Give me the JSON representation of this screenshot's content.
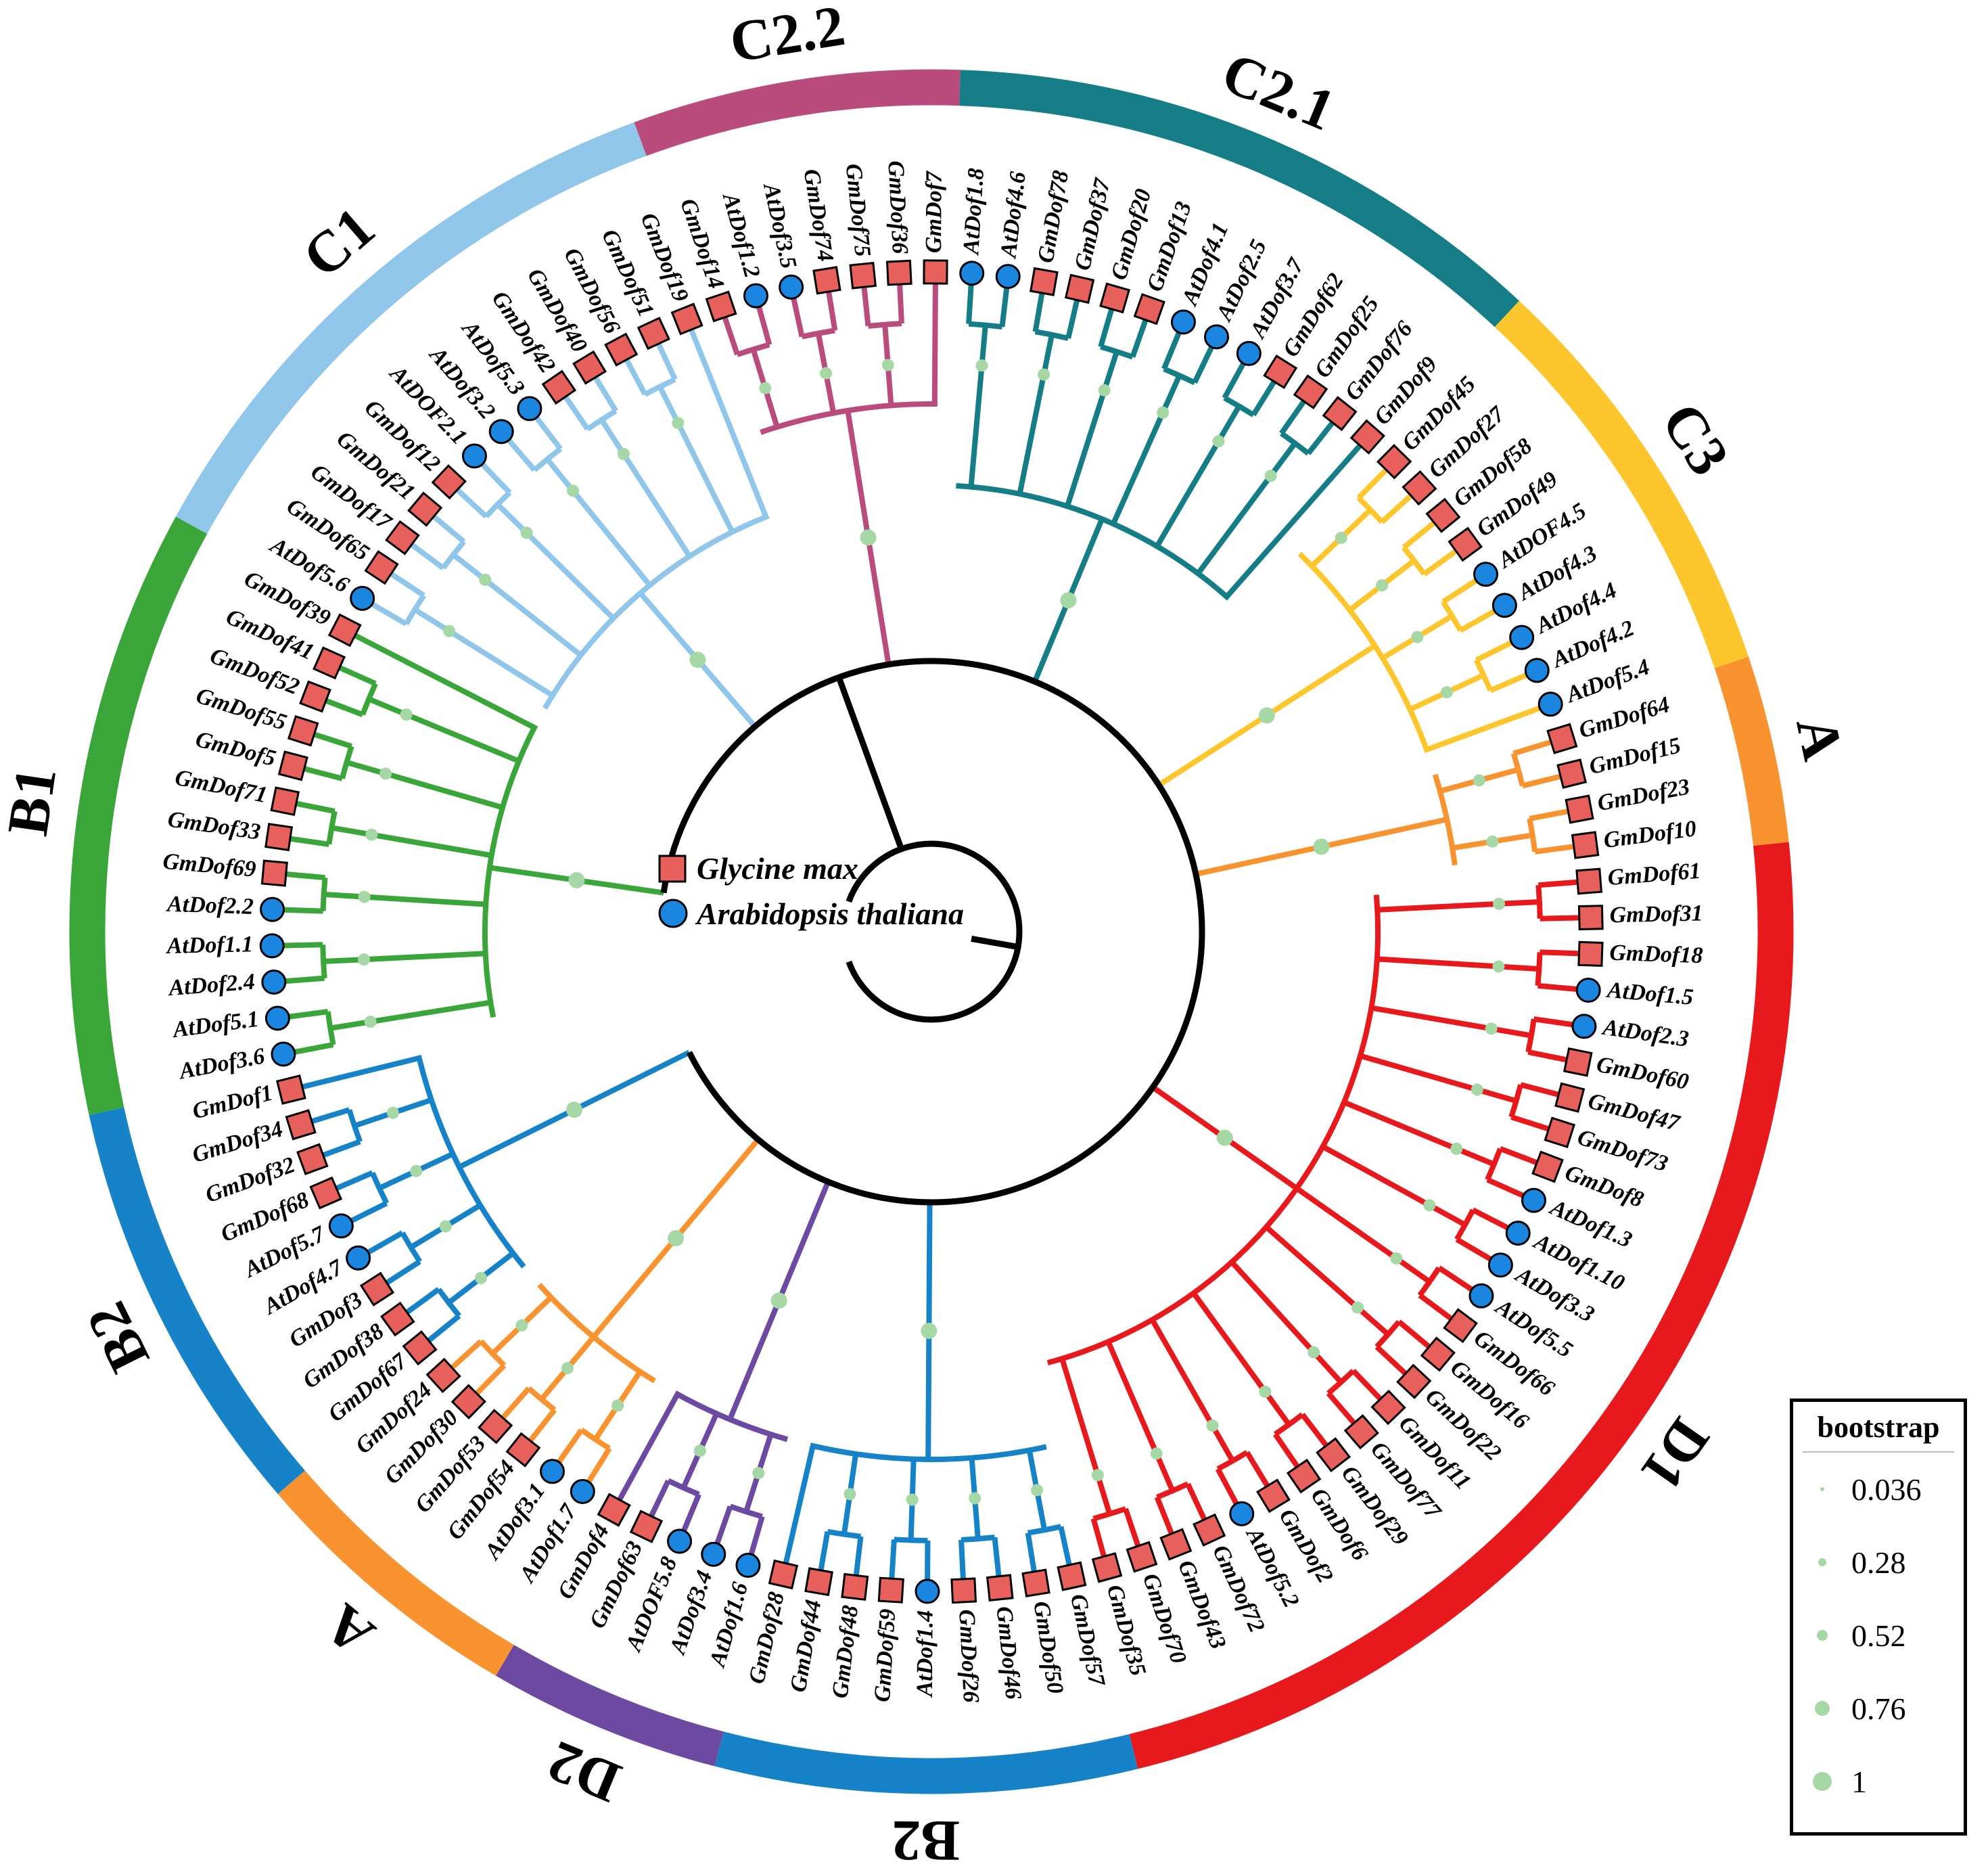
{
  "species_legend": [
    {
      "label": "Glycine max",
      "marker": "square",
      "color": "#e8605c"
    },
    {
      "label": "Arabidopsis thaliana",
      "marker": "circle",
      "color": "#1a86e0"
    }
  ],
  "bootstrap_legend": {
    "title": "bootstrap",
    "values": [
      "0.036",
      "0.28",
      "0.52",
      "0.76",
      "1"
    ],
    "dot_color": "#a5d8a5"
  },
  "clades": [
    {
      "name": "B1",
      "color": "#3aa63a",
      "leaves": [
        "AtDof3.6",
        "AtDof5.1",
        "AtDof2.4",
        "AtDof1.1",
        "AtDof2.2",
        "GmDof69",
        "GmDof33",
        "GmDof71",
        "GmDof5",
        "GmDof55",
        "GmDof52",
        "GmDof41",
        "GmDof39"
      ]
    },
    {
      "name": "C1",
      "color": "#8fc6ea",
      "leaves": [
        "AtDof5.6",
        "GmDof65",
        "GmDof17",
        "GmDof21",
        "GmDof12",
        "AtDOF2.1",
        "AtDof3.2",
        "AtDof5.3",
        "GmDof42",
        "GmDof40",
        "GmDof56",
        "GmDof51",
        "GmDof19"
      ]
    },
    {
      "name": "C2.2",
      "color": "#b94b7d",
      "leaves": [
        "GmDof14",
        "AtDof1.2",
        "AtDof3.5",
        "GmDof74",
        "GmDof75",
        "GmDof36",
        "GmDof7"
      ]
    },
    {
      "name": "C2.1",
      "color": "#147d85",
      "leaves": [
        "AtDof1.8",
        "AtDof4.6",
        "GmDof78",
        "GmDof37",
        "GmDof20",
        "GmDof13",
        "AtDof4.1",
        "AtDof2.5",
        "AtDof3.7",
        "GmDof62",
        "GmDof25",
        "GmDof76",
        "GmDof9"
      ]
    },
    {
      "name": "C3",
      "color": "#fcc62c",
      "leaves": [
        "GmDof45",
        "GmDof27",
        "GmDof58",
        "GmDof49",
        "AtDOF4.5",
        "AtDof4.3",
        "AtDof4.4",
        "AtDof4.2",
        "AtDof5.4"
      ]
    },
    {
      "name": "A",
      "color": "#f8932f",
      "leaves": [
        "GmDof64",
        "GmDof15",
        "GmDof23",
        "GmDof10"
      ]
    },
    {
      "name": "D1",
      "color": "#e8191c",
      "leaves": [
        "GmDof61",
        "GmDof31",
        "GmDof18",
        "AtDof1.5",
        "AtDof2.3",
        "GmDof60",
        "GmDof47",
        "GmDof73",
        "GmDof8",
        "AtDof1.3",
        "AtDof1.10",
        "AtDof3.3",
        "AtDof5.5",
        "GmDof66",
        "GmDof16",
        "GmDof22",
        "GmDof11",
        "GmDof77",
        "GmDof29",
        "GmDof6",
        "GmDof2",
        "AtDof5.2",
        "GmDof72",
        "GmDof43",
        "GmDof70",
        "GmDof35"
      ]
    },
    {
      "name": "B2",
      "color": "#1683c8",
      "leaves": [
        "GmDof57",
        "GmDof50",
        "GmDof46",
        "GmDof26",
        "AtDof1.4",
        "GmDof59",
        "GmDof48",
        "GmDof44",
        "GmDof28"
      ]
    },
    {
      "name": "D2",
      "color": "#6c4aa2",
      "leaves": [
        "AtDof1.6",
        "AtDof3.4",
        "AtDOF5.8",
        "GmDof63",
        "GmDof4"
      ]
    },
    {
      "name": "A",
      "color": "#f8932f",
      "leaves": [
        "AtDof1.7",
        "AtDof3.1",
        "GmDof54",
        "GmDof53",
        "GmDof30",
        "GmDof24"
      ]
    },
    {
      "name": "B2",
      "color": "#1683c8",
      "leaves": [
        "GmDof67",
        "GmDof38",
        "GmDof3",
        "AtDof4.7",
        "AtDof5.7",
        "GmDof68",
        "GmDof32",
        "GmDof34",
        "GmDof1"
      ]
    }
  ]
}
